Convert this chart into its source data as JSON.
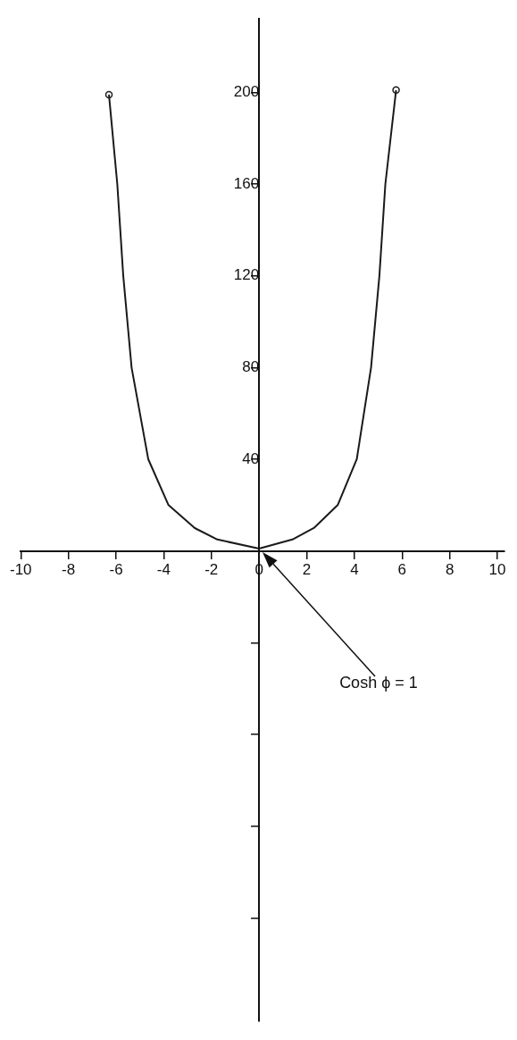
{
  "chart_data": {
    "type": "line",
    "series": [
      {
        "color": "#1a1a1a",
        "marker": "none",
        "x": [
          -6.3,
          -5.95,
          -5.7,
          -5.35,
          -4.65,
          -3.8,
          -2.7,
          -1.75,
          0,
          1.4,
          2.3,
          3.3,
          4.1,
          4.7,
          5.05,
          5.3,
          5.75
        ],
        "values": [
          199,
          160,
          120,
          80,
          40,
          20,
          10,
          5,
          1,
          5,
          10,
          20,
          40,
          80,
          120,
          160,
          201
        ]
      },
      {
        "type": "scatter",
        "color": "#1a1a1a",
        "x": [
          -6.3,
          5.75
        ],
        "values": [
          199,
          201
        ]
      }
    ],
    "xlim": [
      -10,
      10.3
    ],
    "ylim": [
      -205,
      232
    ],
    "xticks": [
      -10,
      -8,
      -6,
      -4,
      -2,
      0,
      2,
      4,
      6,
      8,
      10
    ],
    "yticks": [
      {
        "value": -160,
        "label": null
      },
      {
        "value": -120,
        "label": null
      },
      {
        "value": -80,
        "label": null
      },
      {
        "value": -40,
        "label": null
      },
      40,
      80,
      120,
      160,
      200
    ],
    "grid": false,
    "legend": false,
    "marker": "circle",
    "line_style": "solid",
    "annotations": [
      "Cosh ϕ = 1"
    ]
  }
}
